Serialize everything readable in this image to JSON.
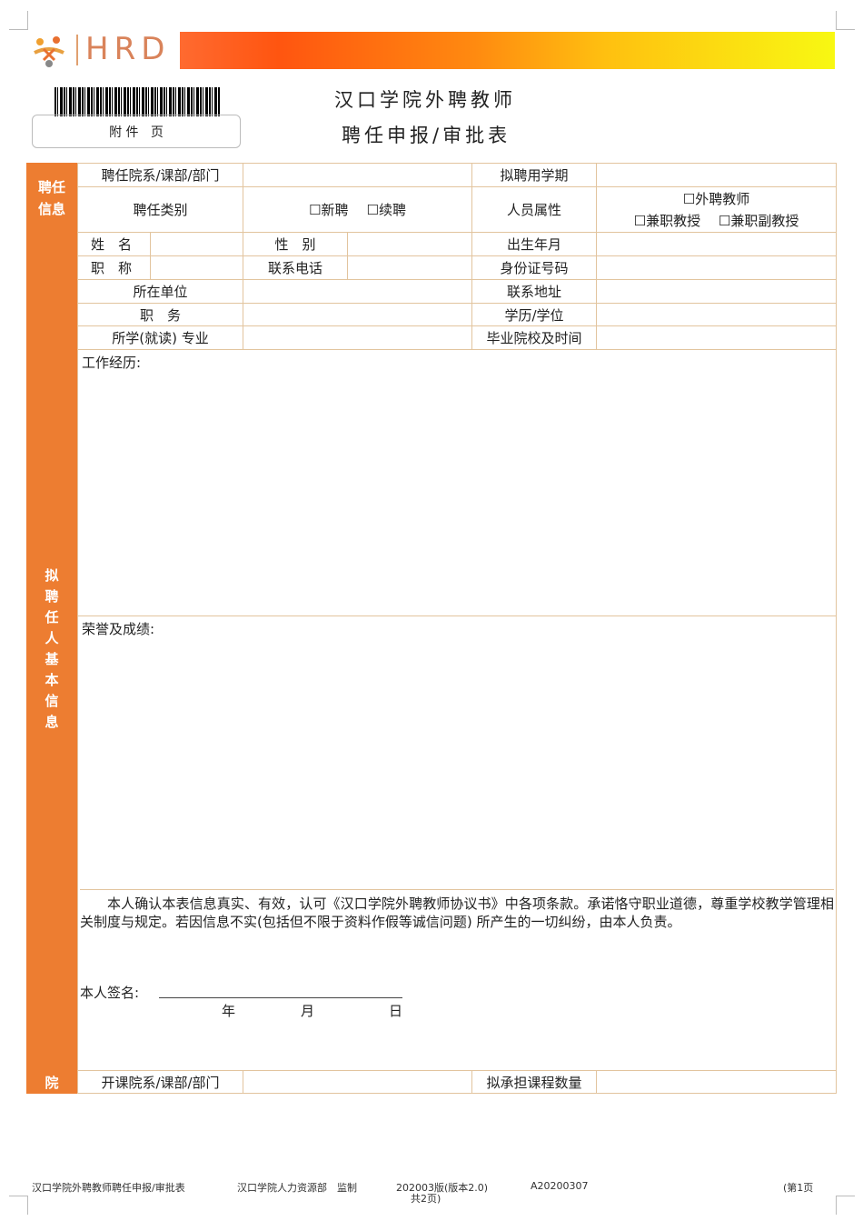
{
  "header": {
    "logo_text": "HRD",
    "barcode_label": "附 件   页",
    "title_line1": "汉口学院外聘教师",
    "title_line2": "聘任申报/审批表",
    "brand_gradient": [
      "#ff5a1f",
      "#ff9a10",
      "#f8f812"
    ]
  },
  "section_appoint": {
    "label": "聘任信息",
    "dept_label": "聘任院系/课部/部门",
    "term_label": "拟聘用学期",
    "type_label": "聘任类别",
    "type_options": [
      "新聘",
      "续聘"
    ],
    "attr_label": "人员属性",
    "attr_options": [
      "外聘教师",
      "兼职教授",
      "兼职副教授"
    ]
  },
  "section_basic": {
    "label": "拟聘任人基本信息",
    "name_label": "姓　名",
    "gender_label": "性　别",
    "birth_label": "出生年月",
    "title_label": "职　称",
    "phone_label": "联系电话",
    "id_label": "身份证号码",
    "unit_label": "所在单位",
    "address_label": "联系地址",
    "position_label": "职　务",
    "degree_label": "学历/学位",
    "major_label": "所学(就读) 专业",
    "school_label": "毕业院校及时间",
    "work_label": "工作经历:",
    "honor_label": "荣誉及成绩:",
    "declaration": "本人确认本表信息真实、有效，认可《汉口学院外聘教师协议书》中各项条款。承诺恪守职业道德，尊重学校教学管理相关制度与规定。若因信息不实(包括但不限于资料作假等诚信问题) 所产生的一切纠纷，由本人负责。",
    "sign_label": "本人签名:",
    "year": "年",
    "month": "月",
    "day": "日"
  },
  "section_college": {
    "label": "院",
    "course_dept_label": "开课院系/课部/部门",
    "course_count_label": "拟承担课程数量"
  },
  "footer": {
    "doc_name": "汉口学院外聘教师聘任申报/审批表",
    "maker": "汉口学院人力资源部　监制",
    "version": "202003版(版本2.0)",
    "pages_total": "共2页)",
    "code": "A20200307",
    "page": "(第1页"
  },
  "colors": {
    "accent": "#ed7d31",
    "border": "#e2c49e"
  }
}
